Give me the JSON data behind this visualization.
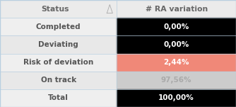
{
  "rows": [
    {
      "label": "Completed",
      "value": "0,00%",
      "cell_bg": "#000000",
      "cell_fg": "#ffffff",
      "row_bg": "#efefef"
    },
    {
      "label": "Deviating",
      "value": "0,00%",
      "cell_bg": "#000000",
      "cell_fg": "#ffffff",
      "row_bg": "#e8e8e8"
    },
    {
      "label": "Risk of deviation",
      "value": "2,44%",
      "cell_bg": "#f08878",
      "cell_fg": "#ffffff",
      "row_bg": "#efefef"
    },
    {
      "label": "On track",
      "value": "97,56%",
      "cell_bg": "#cccccc",
      "cell_fg": "#aaaaaa",
      "row_bg": "#e8e8e8"
    },
    {
      "label": "Total",
      "value": "100,00%",
      "cell_bg": "#000000",
      "cell_fg": "#ffffff",
      "row_bg": "#efefef"
    }
  ],
  "header_label": "Status",
  "header_value": "# RA variation",
  "header_bg": "#ebebeb",
  "header_fg": "#666666",
  "label_fg": "#555555",
  "border_color": "#b8cfe0",
  "col_split": 0.495,
  "label_fontsize": 7.5,
  "value_fontsize": 7.5,
  "header_fontsize": 7.8,
  "fig_width": 3.34,
  "fig_height": 1.51,
  "dpi": 100
}
